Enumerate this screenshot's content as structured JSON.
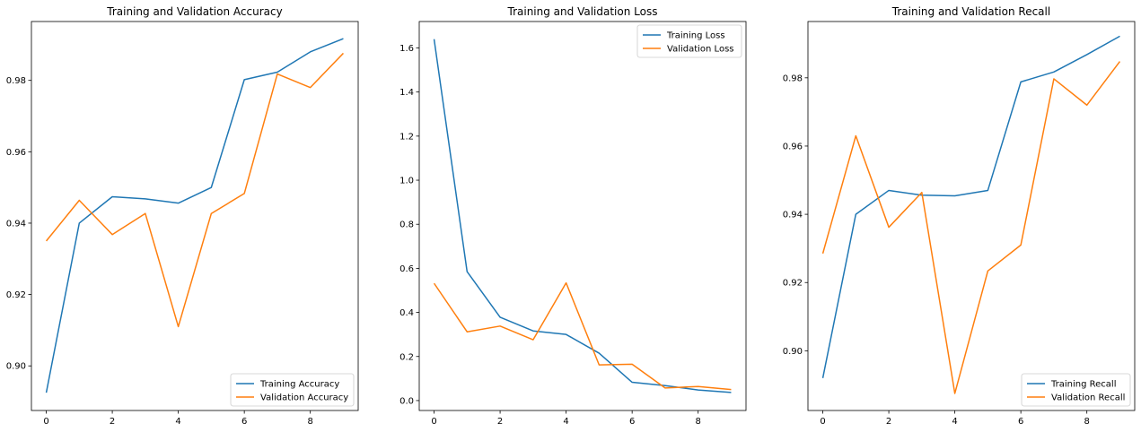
{
  "chart_data": [
    {
      "type": "line",
      "title": "Training and Validation Accuracy",
      "xlabel": "",
      "ylabel": "",
      "xlim": [
        -0.45,
        9.45
      ],
      "ylim": [
        0.8875,
        0.9965
      ],
      "xticks": [
        0,
        2,
        4,
        6,
        8
      ],
      "yticks": [
        0.9,
        0.92,
        0.94,
        0.96,
        0.98
      ],
      "ytick_labels": [
        "0.90",
        "0.92",
        "0.94",
        "0.96",
        "0.98"
      ],
      "legend_position": "lower-right",
      "grid": false,
      "x": [
        0,
        1,
        2,
        3,
        4,
        5,
        6,
        7,
        8,
        9
      ],
      "series": [
        {
          "name": "Training Accuracy",
          "color": "#1f77b4",
          "values": [
            0.8925,
            0.94,
            0.9474,
            0.9468,
            0.9456,
            0.95,
            0.9802,
            0.9823,
            0.988,
            0.9917
          ]
        },
        {
          "name": "Validation Accuracy",
          "color": "#ff7f0e",
          "values": [
            0.935,
            0.9464,
            0.9368,
            0.9427,
            0.911,
            0.9427,
            0.9483,
            0.9818,
            0.978,
            0.9876
          ]
        }
      ]
    },
    {
      "type": "line",
      "title": "Training and Validation Loss",
      "xlabel": "",
      "ylabel": "",
      "xlim": [
        -0.45,
        9.45
      ],
      "ylim": [
        -0.045,
        1.72
      ],
      "xticks": [
        0,
        2,
        4,
        6,
        8
      ],
      "yticks": [
        0.0,
        0.2,
        0.4,
        0.6,
        0.8,
        1.0,
        1.2,
        1.4,
        1.6
      ],
      "ytick_labels": [
        "0.0",
        "0.2",
        "0.4",
        "0.6",
        "0.8",
        "1.0",
        "1.2",
        "1.4",
        "1.6"
      ],
      "legend_position": "top-right",
      "grid": false,
      "x": [
        0,
        1,
        2,
        3,
        4,
        5,
        6,
        7,
        8,
        9
      ],
      "series": [
        {
          "name": "Training Loss",
          "color": "#1f77b4",
          "values": [
            1.64,
            0.585,
            0.378,
            0.316,
            0.3,
            0.215,
            0.083,
            0.068,
            0.048,
            0.037
          ]
        },
        {
          "name": "Validation Loss",
          "color": "#ff7f0e",
          "values": [
            0.532,
            0.312,
            0.338,
            0.276,
            0.534,
            0.162,
            0.165,
            0.057,
            0.064,
            0.05
          ]
        }
      ]
    },
    {
      "type": "line",
      "title": "Training and Validation Recall",
      "xlabel": "",
      "ylabel": "",
      "xlim": [
        -0.45,
        9.45
      ],
      "ylim": [
        0.8825,
        0.9965
      ],
      "xticks": [
        0,
        2,
        4,
        6,
        8
      ],
      "yticks": [
        0.9,
        0.92,
        0.94,
        0.96,
        0.98
      ],
      "ytick_labels": [
        "0.90",
        "0.92",
        "0.94",
        "0.96",
        "0.98"
      ],
      "legend_position": "lower-right",
      "grid": false,
      "x": [
        0,
        1,
        2,
        3,
        4,
        5,
        6,
        7,
        8,
        9
      ],
      "series": [
        {
          "name": "Training Recall",
          "color": "#1f77b4",
          "values": [
            0.892,
            0.94,
            0.947,
            0.9456,
            0.9454,
            0.947,
            0.9788,
            0.9817,
            0.9868,
            0.9922
          ]
        },
        {
          "name": "Validation Recall",
          "color": "#ff7f0e",
          "values": [
            0.9285,
            0.963,
            0.9362,
            0.9464,
            0.8875,
            0.9234,
            0.931,
            0.9797,
            0.972,
            0.9848
          ]
        }
      ]
    }
  ]
}
